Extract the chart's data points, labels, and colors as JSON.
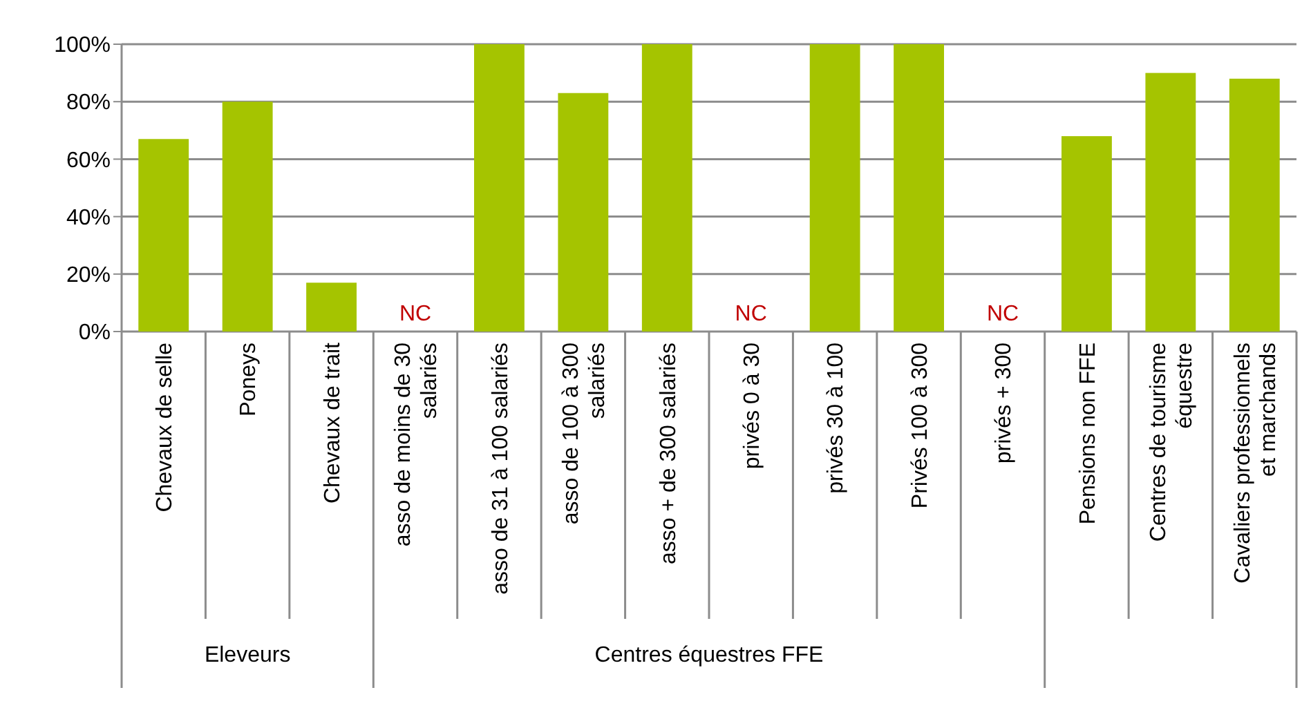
{
  "chart_data": {
    "type": "bar",
    "categories": [
      "Chevaux de selle",
      "Poneys",
      "Chevaux de trait",
      "asso de moins de 30 salariés",
      "asso de 31 à 100 salariés",
      "asso de 100 à 300 salariés",
      "asso + de 300 salariés",
      "privés 0 à 30",
      "privés 30 à 100",
      "Privés 100 à 300",
      "privés + 300",
      "Pensions non FFE",
      "Centres de tourisme équestre",
      "Cavaliers professionnels et marchands"
    ],
    "values": [
      67,
      80,
      17,
      null,
      100,
      83,
      100,
      null,
      100,
      100,
      null,
      68,
      90,
      88
    ],
    "value_labels": [
      null,
      null,
      null,
      "NC",
      null,
      null,
      null,
      "NC",
      null,
      null,
      "NC",
      null,
      null,
      null
    ],
    "color": "#a5c400",
    "ylim": [
      0,
      100
    ],
    "yticks": [
      {
        "value": 0,
        "label": "0%"
      },
      {
        "value": 20,
        "label": "20%"
      },
      {
        "value": 40,
        "label": "40%"
      },
      {
        "value": 60,
        "label": "60%"
      },
      {
        "value": 80,
        "label": "80%"
      },
      {
        "value": 100,
        "label": "100%"
      }
    ],
    "grid": "y",
    "annotations": [
      "Eleveurs",
      "Centres équestres FFE"
    ]
  }
}
